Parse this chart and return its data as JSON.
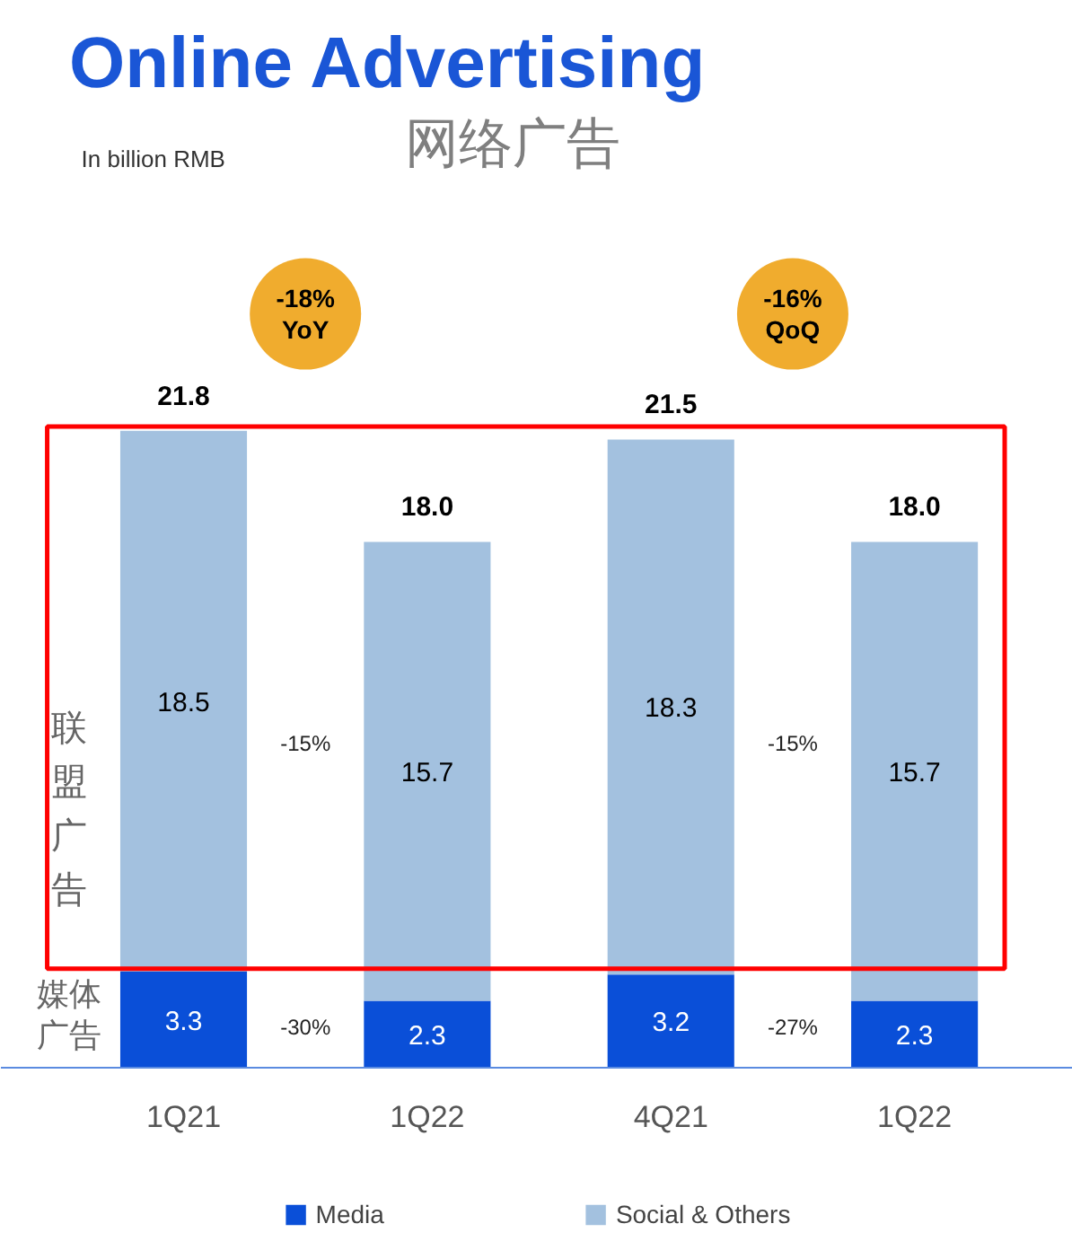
{
  "chart_data": {
    "type": "bar",
    "stacked": true,
    "title": "Online Advertising",
    "subtitle": "网络广告",
    "categories": [
      "1Q21",
      "1Q22",
      "4Q21",
      "1Q22"
    ],
    "series": [
      {
        "name": "Media",
        "color": "#0a4fd8",
        "values": [
          3.3,
          2.3,
          3.2,
          2.3
        ]
      },
      {
        "name": "Social & Others",
        "color": "#a3c1df",
        "values": [
          18.5,
          15.7,
          18.3,
          15.7
        ]
      }
    ],
    "totals": [
      "21.8",
      "18.0",
      "21.5",
      "18.0"
    ],
    "data_labels": true,
    "legend": "bottom",
    "grid": false,
    "annotations": [
      "In billion RMB",
      "-18%\nYoY",
      "-16%\nQoQ",
      "-15%",
      "-30%",
      "-15%",
      "-27%",
      "联盟广告",
      "媒体广告"
    ]
  }
}
